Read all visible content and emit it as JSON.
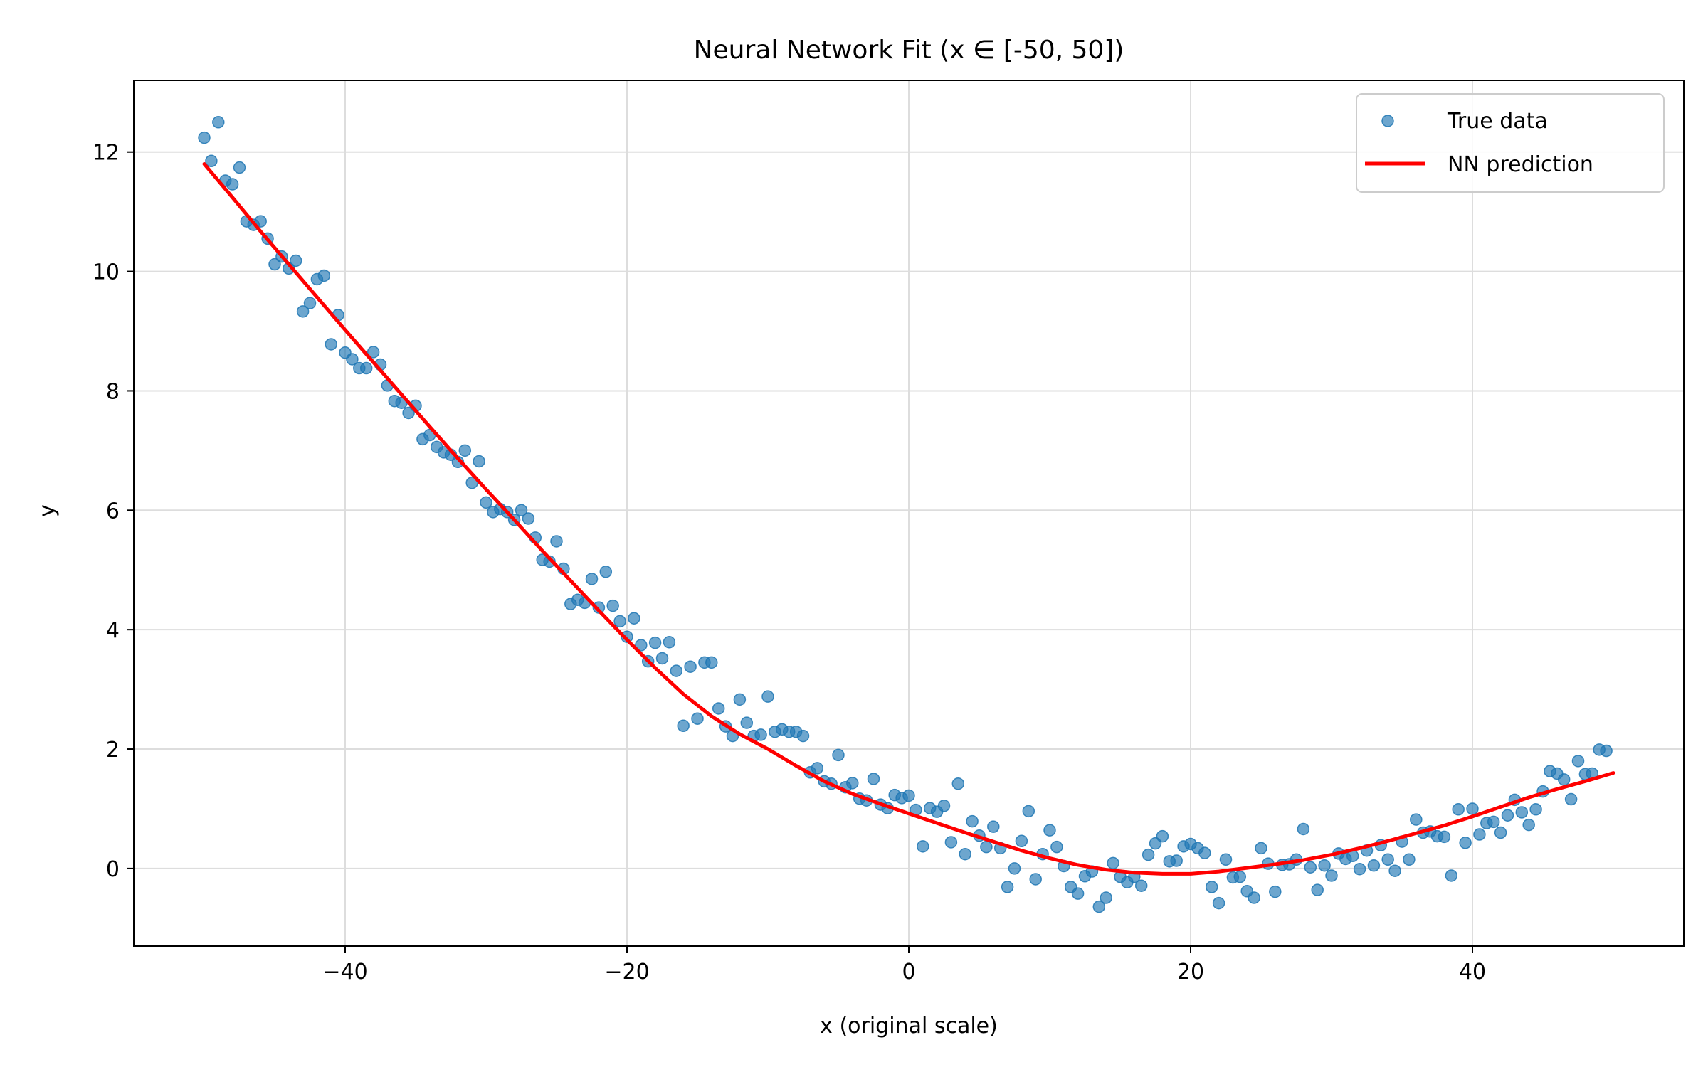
{
  "chart_data": {
    "type": "scatter",
    "title": "Neural Network Fit (x ∈ [-50, 50])",
    "xlabel": "x (original scale)",
    "ylabel": "y",
    "xlim": [
      -55,
      55
    ],
    "ylim": [
      -1.3,
      13.2
    ],
    "x_ticks": [
      -40,
      -20,
      0,
      20,
      40
    ],
    "x_tick_labels": [
      "−40",
      "−20",
      "0",
      "20",
      "40"
    ],
    "y_ticks": [
      0,
      2,
      4,
      6,
      8,
      10,
      12
    ],
    "y_tick_labels": [
      "0",
      "2",
      "4",
      "6",
      "8",
      "10",
      "12"
    ],
    "grid": true,
    "legend_position": "top-right",
    "series": [
      {
        "name": "True data",
        "type": "scatter",
        "color": "#1f77b4",
        "points": [
          [
            -50.0,
            12.24
          ],
          [
            -49.5,
            11.85
          ],
          [
            -49.0,
            12.5
          ],
          [
            -48.5,
            11.52
          ],
          [
            -48.0,
            11.46
          ],
          [
            -47.5,
            11.74
          ],
          [
            -47.0,
            10.84
          ],
          [
            -46.5,
            10.78
          ],
          [
            -46.0,
            10.84
          ],
          [
            -45.5,
            10.55
          ],
          [
            -45.0,
            10.12
          ],
          [
            -44.5,
            10.25
          ],
          [
            -44.0,
            10.05
          ],
          [
            -43.5,
            10.18
          ],
          [
            -43.0,
            9.33
          ],
          [
            -42.5,
            9.47
          ],
          [
            -42.0,
            9.87
          ],
          [
            -41.5,
            9.93
          ],
          [
            -41.0,
            8.78
          ],
          [
            -40.5,
            9.27
          ],
          [
            -40.0,
            8.64
          ],
          [
            -39.5,
            8.53
          ],
          [
            -39.0,
            8.38
          ],
          [
            -38.5,
            8.38
          ],
          [
            -38.0,
            8.65
          ],
          [
            -37.5,
            8.44
          ],
          [
            -37.0,
            8.09
          ],
          [
            -36.5,
            7.83
          ],
          [
            -36.0,
            7.8
          ],
          [
            -35.5,
            7.63
          ],
          [
            -35.0,
            7.75
          ],
          [
            -34.5,
            7.19
          ],
          [
            -34.0,
            7.26
          ],
          [
            -33.5,
            7.06
          ],
          [
            -33.0,
            6.97
          ],
          [
            -32.5,
            6.93
          ],
          [
            -32.0,
            6.81
          ],
          [
            -31.5,
            7.0
          ],
          [
            -31.0,
            6.46
          ],
          [
            -30.5,
            6.82
          ],
          [
            -30.0,
            6.13
          ],
          [
            -29.5,
            5.97
          ],
          [
            -29.0,
            6.02
          ],
          [
            -28.5,
            5.97
          ],
          [
            -28.0,
            5.84
          ],
          [
            -27.5,
            6.0
          ],
          [
            -27.0,
            5.86
          ],
          [
            -26.5,
            5.54
          ],
          [
            -26.0,
            5.17
          ],
          [
            -25.5,
            5.14
          ],
          [
            -25.0,
            5.48
          ],
          [
            -24.5,
            5.02
          ],
          [
            -24.0,
            4.43
          ],
          [
            -23.5,
            4.5
          ],
          [
            -23.0,
            4.45
          ],
          [
            -22.5,
            4.85
          ],
          [
            -22.0,
            4.37
          ],
          [
            -21.5,
            4.97
          ],
          [
            -21.0,
            4.4
          ],
          [
            -20.5,
            4.14
          ],
          [
            -20.0,
            3.88
          ],
          [
            -19.5,
            4.19
          ],
          [
            -19.0,
            3.74
          ],
          [
            -18.5,
            3.47
          ],
          [
            -18.0,
            3.78
          ],
          [
            -17.5,
            3.52
          ],
          [
            -17.0,
            3.79
          ],
          [
            -16.5,
            3.31
          ],
          [
            -16.0,
            2.39
          ],
          [
            -15.5,
            3.38
          ],
          [
            -15.0,
            2.51
          ],
          [
            -14.5,
            3.45
          ],
          [
            -14.0,
            3.45
          ],
          [
            -13.5,
            2.68
          ],
          [
            -13.0,
            2.38
          ],
          [
            -12.5,
            2.22
          ],
          [
            -12.0,
            2.83
          ],
          [
            -11.5,
            2.44
          ],
          [
            -11.0,
            2.22
          ],
          [
            -10.5,
            2.24
          ],
          [
            -10.0,
            2.88
          ],
          [
            -9.5,
            2.29
          ],
          [
            -9.0,
            2.33
          ],
          [
            -8.5,
            2.29
          ],
          [
            -8.0,
            2.29
          ],
          [
            -7.5,
            2.22
          ],
          [
            -7.0,
            1.61
          ],
          [
            -6.5,
            1.68
          ],
          [
            -6.0,
            1.46
          ],
          [
            -5.5,
            1.42
          ],
          [
            -5.0,
            1.9
          ],
          [
            -4.5,
            1.36
          ],
          [
            -4.0,
            1.43
          ],
          [
            -3.5,
            1.17
          ],
          [
            -3.0,
            1.14
          ],
          [
            -2.5,
            1.5
          ],
          [
            -2.0,
            1.07
          ],
          [
            -1.5,
            1.01
          ],
          [
            -1.0,
            1.23
          ],
          [
            -0.5,
            1.18
          ],
          [
            0.0,
            1.22
          ],
          [
            0.5,
            0.98
          ],
          [
            1.0,
            0.37
          ],
          [
            1.5,
            1.01
          ],
          [
            2.0,
            0.95
          ],
          [
            2.5,
            1.05
          ],
          [
            3.0,
            0.44
          ],
          [
            3.5,
            1.42
          ],
          [
            4.0,
            0.24
          ],
          [
            4.5,
            0.79
          ],
          [
            5.0,
            0.55
          ],
          [
            5.5,
            0.36
          ],
          [
            6.0,
            0.7
          ],
          [
            6.5,
            0.34
          ],
          [
            7.0,
            -0.31
          ],
          [
            7.5,
            0.0
          ],
          [
            8.0,
            0.46
          ],
          [
            8.5,
            0.96
          ],
          [
            9.0,
            -0.18
          ],
          [
            9.5,
            0.24
          ],
          [
            10.0,
            0.64
          ],
          [
            10.5,
            0.36
          ],
          [
            11.0,
            0.04
          ],
          [
            11.5,
            -0.31
          ],
          [
            12.0,
            -0.42
          ],
          [
            12.5,
            -0.13
          ],
          [
            13.0,
            -0.05
          ],
          [
            13.5,
            -0.64
          ],
          [
            14.0,
            -0.49
          ],
          [
            14.5,
            0.09
          ],
          [
            15.0,
            -0.14
          ],
          [
            15.5,
            -0.23
          ],
          [
            16.0,
            -0.14
          ],
          [
            16.5,
            -0.29
          ],
          [
            17.0,
            0.23
          ],
          [
            17.5,
            0.42
          ],
          [
            18.0,
            0.54
          ],
          [
            18.5,
            0.12
          ],
          [
            19.0,
            0.13
          ],
          [
            19.5,
            0.37
          ],
          [
            20.0,
            0.41
          ],
          [
            20.5,
            0.34
          ],
          [
            21.0,
            0.26
          ],
          [
            21.5,
            -0.31
          ],
          [
            22.0,
            -0.58
          ],
          [
            22.5,
            0.15
          ],
          [
            23.0,
            -0.15
          ],
          [
            23.5,
            -0.14
          ],
          [
            24.0,
            -0.38
          ],
          [
            24.5,
            -0.49
          ],
          [
            25.0,
            0.34
          ],
          [
            25.5,
            0.08
          ],
          [
            26.0,
            -0.39
          ],
          [
            26.5,
            0.06
          ],
          [
            27.0,
            0.07
          ],
          [
            27.5,
            0.15
          ],
          [
            28.0,
            0.66
          ],
          [
            28.5,
            0.02
          ],
          [
            29.0,
            -0.36
          ],
          [
            29.5,
            0.05
          ],
          [
            30.0,
            -0.12
          ],
          [
            30.5,
            0.25
          ],
          [
            31.0,
            0.16
          ],
          [
            31.5,
            0.21
          ],
          [
            32.0,
            -0.01
          ],
          [
            32.5,
            0.3
          ],
          [
            33.0,
            0.05
          ],
          [
            33.5,
            0.39
          ],
          [
            34.0,
            0.15
          ],
          [
            34.5,
            -0.04
          ],
          [
            35.0,
            0.45
          ],
          [
            35.5,
            0.15
          ],
          [
            36.0,
            0.82
          ],
          [
            36.5,
            0.6
          ],
          [
            37.0,
            0.62
          ],
          [
            37.5,
            0.54
          ],
          [
            38.0,
            0.53
          ],
          [
            38.5,
            -0.12
          ],
          [
            39.0,
            0.99
          ],
          [
            39.5,
            0.43
          ],
          [
            40.0,
            1.0
          ],
          [
            40.5,
            0.57
          ],
          [
            41.0,
            0.76
          ],
          [
            41.5,
            0.78
          ],
          [
            42.0,
            0.6
          ],
          [
            42.5,
            0.89
          ],
          [
            43.0,
            1.15
          ],
          [
            43.5,
            0.94
          ],
          [
            44.0,
            0.73
          ],
          [
            44.5,
            0.99
          ],
          [
            45.0,
            1.29
          ],
          [
            45.5,
            1.63
          ],
          [
            46.0,
            1.59
          ],
          [
            46.5,
            1.49
          ],
          [
            47.0,
            1.16
          ],
          [
            47.5,
            1.8
          ],
          [
            48.0,
            1.58
          ],
          [
            48.5,
            1.59
          ],
          [
            49.0,
            1.99
          ],
          [
            49.5,
            1.97
          ]
        ]
      },
      {
        "name": "NN prediction",
        "type": "line",
        "color": "#ff0000",
        "points": [
          [
            -50,
            11.8
          ],
          [
            -48,
            11.24
          ],
          [
            -46,
            10.67
          ],
          [
            -44,
            10.12
          ],
          [
            -42,
            9.57
          ],
          [
            -40,
            9.02
          ],
          [
            -38,
            8.48
          ],
          [
            -36,
            7.94
          ],
          [
            -34,
            7.4
          ],
          [
            -32,
            6.87
          ],
          [
            -30,
            6.35
          ],
          [
            -28,
            5.84
          ],
          [
            -26,
            5.32
          ],
          [
            -24,
            4.82
          ],
          [
            -22,
            4.32
          ],
          [
            -20,
            3.83
          ],
          [
            -18,
            3.36
          ],
          [
            -16,
            2.92
          ],
          [
            -14,
            2.55
          ],
          [
            -12,
            2.25
          ],
          [
            -10,
            2.0
          ],
          [
            -8,
            1.72
          ],
          [
            -6,
            1.46
          ],
          [
            -4,
            1.25
          ],
          [
            -2,
            1.08
          ],
          [
            0,
            0.92
          ],
          [
            2,
            0.76
          ],
          [
            4,
            0.6
          ],
          [
            6,
            0.45
          ],
          [
            8,
            0.3
          ],
          [
            10,
            0.17
          ],
          [
            12,
            0.06
          ],
          [
            14,
            -0.02
          ],
          [
            16,
            -0.07
          ],
          [
            18,
            -0.09
          ],
          [
            20,
            -0.09
          ],
          [
            22,
            -0.05
          ],
          [
            24,
            0.01
          ],
          [
            26,
            0.07
          ],
          [
            28,
            0.14
          ],
          [
            30,
            0.23
          ],
          [
            32,
            0.34
          ],
          [
            34,
            0.46
          ],
          [
            36,
            0.59
          ],
          [
            38,
            0.72
          ],
          [
            40,
            0.87
          ],
          [
            42,
            1.03
          ],
          [
            44,
            1.19
          ],
          [
            46,
            1.33
          ],
          [
            48,
            1.46
          ],
          [
            50,
            1.6
          ]
        ]
      }
    ]
  }
}
